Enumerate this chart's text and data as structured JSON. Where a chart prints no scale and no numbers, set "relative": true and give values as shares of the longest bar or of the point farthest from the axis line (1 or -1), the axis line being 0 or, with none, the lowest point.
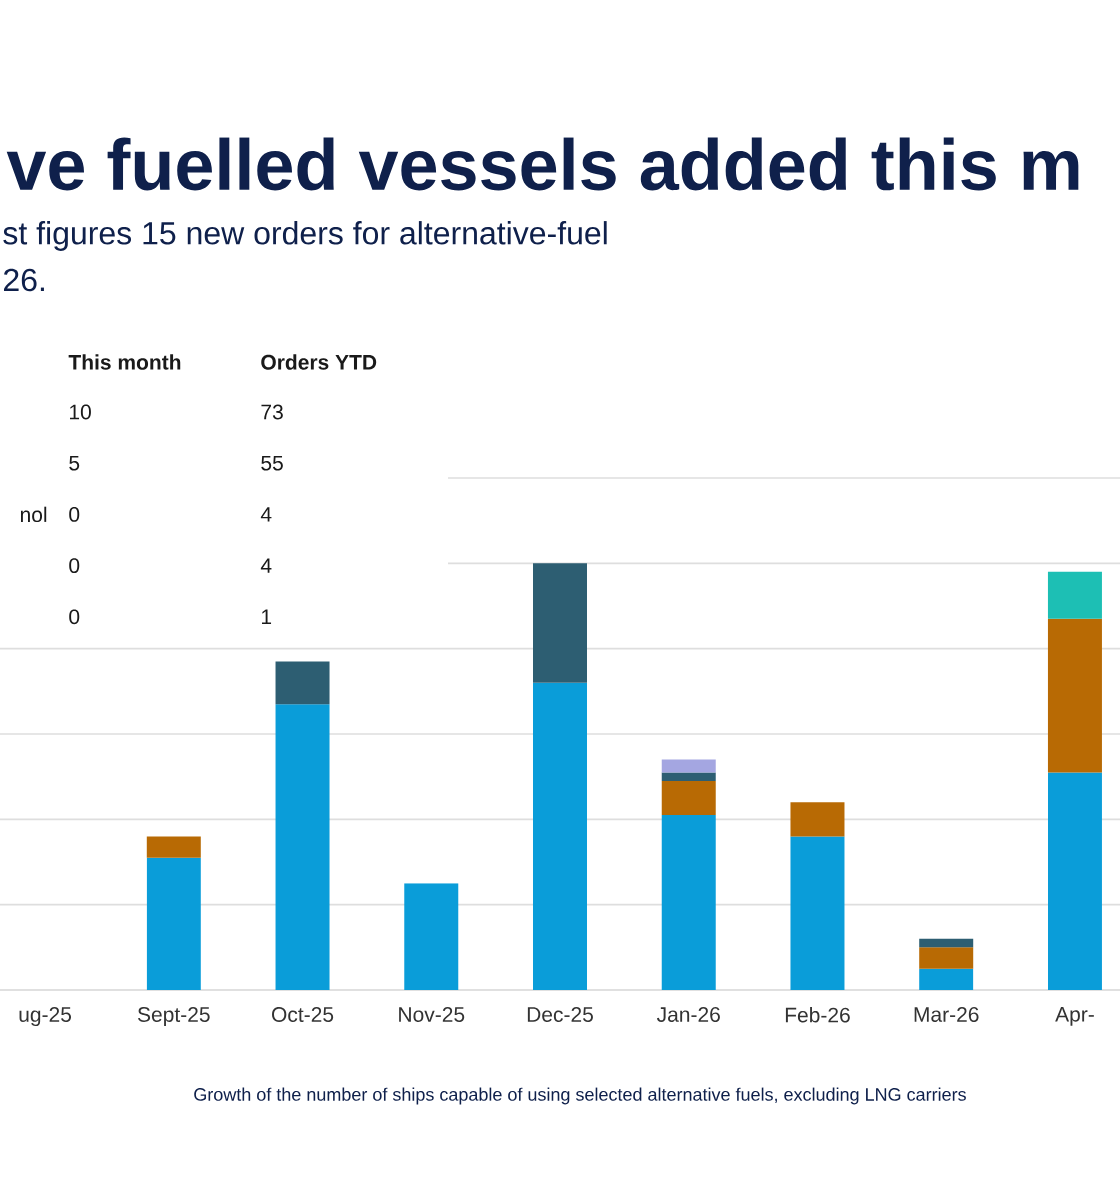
{
  "chart_data": [
    {
      "type": "bar",
      "title": "ve fuelled vessels added this m",
      "subtitle": "st figures 15 new orders for alternative-fuel",
      "annotations": [
        "26.",
        "Growth of the number of ships capable of using selected alternative fuels, excluding LNG carriers"
      ],
      "categories": [
        "ug-25",
        "Sept-25",
        "Oct-25",
        "Nov-25",
        "Dec-25",
        "Jan-26",
        "Feb-26",
        "Mar-26",
        "Apr-"
      ],
      "relative": true,
      "stacked": true,
      "grid": "y",
      "series": [
        {
          "color": "#0a9dd9",
          "values": [
            0,
            0.31,
            0.67,
            0.25,
            0.72,
            0.41,
            0.36,
            0.05,
            0.51
          ]
        },
        {
          "color": "#b86a04",
          "values": [
            0,
            0.05,
            0,
            0,
            0,
            0.08,
            0.08,
            0.05,
            0.36
          ]
        },
        {
          "color": "#2d5e72",
          "values": [
            0,
            0,
            0.1,
            0,
            0.28,
            0.02,
            0,
            0.02,
            0
          ]
        },
        {
          "color": "#a4a6e1",
          "values": [
            0,
            0,
            0,
            0,
            0,
            0.03,
            0,
            0,
            0
          ]
        },
        {
          "color": "#1dbfb4",
          "values": [
            0,
            0,
            0,
            0,
            0,
            0,
            0,
            0,
            0.11
          ]
        }
      ]
    },
    {
      "type": "other",
      "categories": [
        "This month",
        "Orders YTD"
      ],
      "series": [
        {
          "values": [
            10,
            73
          ]
        },
        {
          "values": [
            5,
            55
          ]
        },
        {
          "name": "nol",
          "values": [
            0,
            4
          ]
        },
        {
          "values": [
            0,
            4
          ]
        },
        {
          "values": [
            0,
            1
          ]
        }
      ],
      "data_labels": true
    }
  ]
}
